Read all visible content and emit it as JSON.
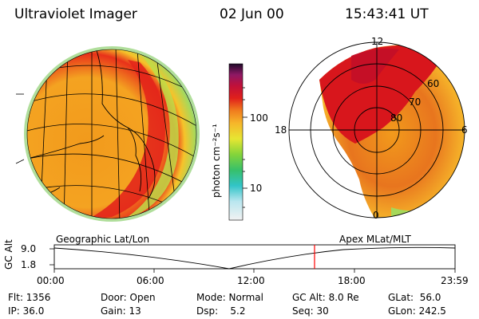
{
  "header": {
    "title": "Ultraviolet Imager",
    "date": "02 Jun 00",
    "time": "15:43:41 UT"
  },
  "colorbar": {
    "unit_label": "photon cm⁻²s⁻¹",
    "ticks": [
      "100",
      "10"
    ]
  },
  "polar": {
    "mlt_labels": [
      "12",
      "18",
      "6",
      "0"
    ],
    "lat_labels": [
      "60",
      "70",
      "80"
    ]
  },
  "panel_labels": {
    "left": "Geographic Lat/Lon",
    "right": "Apex MLat/MLT"
  },
  "altitude_plot": {
    "axis_label": "GC Alt",
    "y_ticks": [
      "9.0",
      "1.8"
    ],
    "x_ticks": [
      "00:00",
      "06:00",
      "12:00",
      "18:00",
      "23:59"
    ],
    "marker_time": "15:43:41"
  },
  "info": {
    "col1": [
      "Flt: 1356",
      "IP: 36.0"
    ],
    "col2": [
      "Door: Open",
      "Gain: 13"
    ],
    "col3": [
      "Mode: Normal",
      "Dsp:    5.2"
    ],
    "col4": [
      "GC Alt: 8.0 Re",
      "Seq: 30"
    ],
    "col5": [
      "GLat:  56.0",
      "GLon: 242.5"
    ]
  }
}
